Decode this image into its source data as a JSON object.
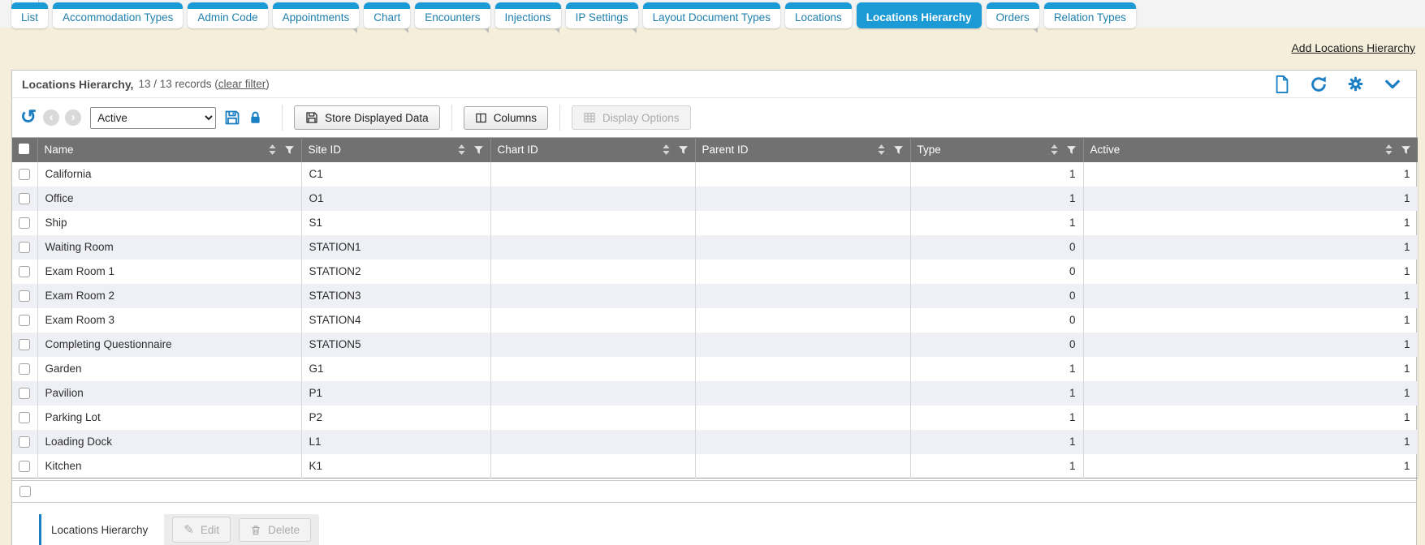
{
  "tab_bar": {
    "tabs": [
      {
        "label": "List",
        "active": false,
        "has_submenu": false
      },
      {
        "label": "Accommodation Types",
        "active": false,
        "has_submenu": false
      },
      {
        "label": "Admin Code",
        "active": false,
        "has_submenu": false
      },
      {
        "label": "Appointments",
        "active": false,
        "has_submenu": true
      },
      {
        "label": "Chart",
        "active": false,
        "has_submenu": true
      },
      {
        "label": "Encounters",
        "active": false,
        "has_submenu": true
      },
      {
        "label": "Injections",
        "active": false,
        "has_submenu": true
      },
      {
        "label": "IP Settings",
        "active": false,
        "has_submenu": true
      },
      {
        "label": "Layout Document Types",
        "active": false,
        "has_submenu": false
      },
      {
        "label": "Locations",
        "active": false,
        "has_submenu": false
      },
      {
        "label": "Locations Hierarchy",
        "active": true,
        "has_submenu": false
      },
      {
        "label": "Orders",
        "active": false,
        "has_submenu": true
      },
      {
        "label": "Relation Types",
        "active": false,
        "has_submenu": false
      }
    ]
  },
  "add_link_label": "Add Locations Hierarchy",
  "panel_header": {
    "title": "Locations Hierarchy,",
    "records_text": "13 / 13 records (",
    "clear_filter_label": "clear filter",
    "records_text_close": ")"
  },
  "toolbar": {
    "filter_select_value": "Active",
    "store_displayed_data_label": "Store Displayed Data",
    "columns_label": "Columns",
    "display_options_label": "Display Options"
  },
  "table": {
    "columns": [
      "Name",
      "Site ID",
      "Chart ID",
      "Parent ID",
      "Type",
      "Active"
    ],
    "rows": [
      {
        "name": "California",
        "site_id": "C1",
        "chart_id": "",
        "parent_id": "",
        "type": "1",
        "active": "1"
      },
      {
        "name": "Office",
        "site_id": "O1",
        "chart_id": "",
        "parent_id": "",
        "type": "1",
        "active": "1"
      },
      {
        "name": "Ship",
        "site_id": "S1",
        "chart_id": "",
        "parent_id": "",
        "type": "1",
        "active": "1"
      },
      {
        "name": "Waiting Room",
        "site_id": "STATION1",
        "chart_id": "",
        "parent_id": "",
        "type": "0",
        "active": "1"
      },
      {
        "name": "Exam Room 1",
        "site_id": "STATION2",
        "chart_id": "",
        "parent_id": "",
        "type": "0",
        "active": "1"
      },
      {
        "name": "Exam Room 2",
        "site_id": "STATION3",
        "chart_id": "",
        "parent_id": "",
        "type": "0",
        "active": "1"
      },
      {
        "name": "Exam Room 3",
        "site_id": "STATION4",
        "chart_id": "",
        "parent_id": "",
        "type": "0",
        "active": "1"
      },
      {
        "name": "Completing Questionnaire",
        "site_id": "STATION5",
        "chart_id": "",
        "parent_id": "",
        "type": "0",
        "active": "1"
      },
      {
        "name": "Garden",
        "site_id": "G1",
        "chart_id": "",
        "parent_id": "",
        "type": "1",
        "active": "1"
      },
      {
        "name": "Pavilion",
        "site_id": "P1",
        "chart_id": "",
        "parent_id": "",
        "type": "1",
        "active": "1"
      },
      {
        "name": "Parking Lot",
        "site_id": "P2",
        "chart_id": "",
        "parent_id": "",
        "type": "1",
        "active": "1"
      },
      {
        "name": "Loading Dock",
        "site_id": "L1",
        "chart_id": "",
        "parent_id": "",
        "type": "1",
        "active": "1"
      },
      {
        "name": "Kitchen",
        "site_id": "K1",
        "chart_id": "",
        "parent_id": "",
        "type": "1",
        "active": "1"
      }
    ]
  },
  "detail_panel": {
    "tab_label": "Locations Hierarchy",
    "edit_label": "Edit",
    "delete_label": "Delete"
  },
  "colors": {
    "tab_blue": "#1b9ad6",
    "icon_blue": "#1b7fc4",
    "header_gray": "#717171",
    "page_background": "#f4eeda",
    "alt_row": "#eef0f5"
  }
}
